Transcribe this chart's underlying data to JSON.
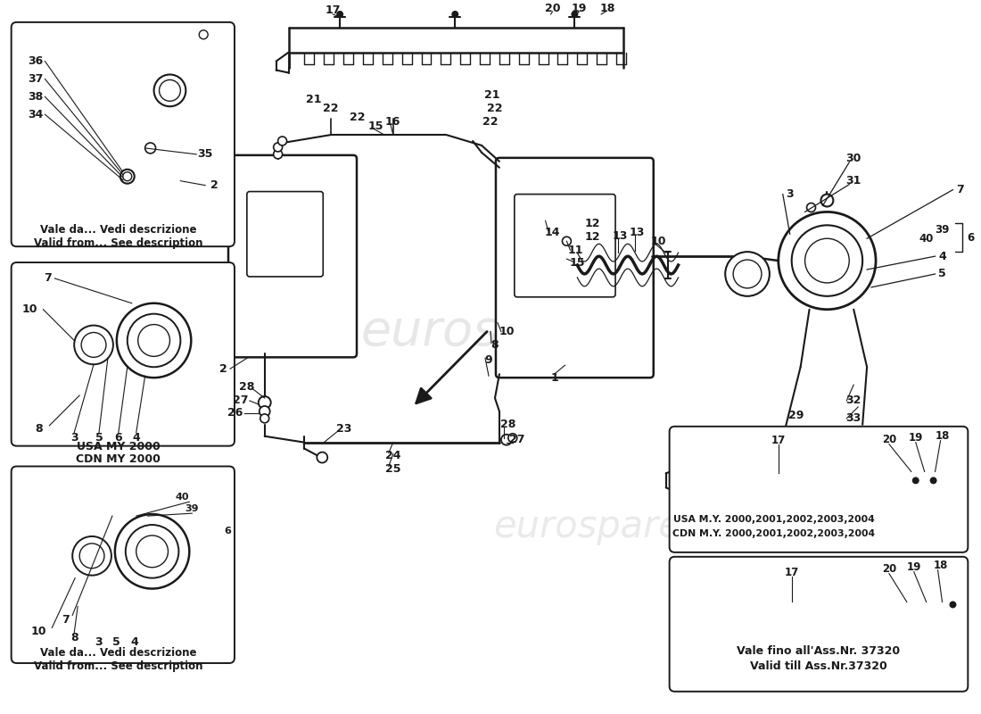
{
  "bg": "#ffffff",
  "lc": "#1a1a1a",
  "fw": 11.0,
  "fh": 8.0,
  "dpi": 100,
  "inset1_cap": [
    "Vale da... Vedi descrizione",
    "Valid from... See description"
  ],
  "inset2_cap": [
    "USA MY 2000",
    "CDN MY 2000"
  ],
  "inset3_cap": [
    "Vale da... Vedi descrizione",
    "Valid from... See description"
  ],
  "inset4_cap": [
    "USA M.Y. 2000,2001,2002,2003,2004",
    "CDN M.Y. 2000,2001,2002,2003,2004"
  ],
  "inset5_cap": [
    "Vale fino all'Ass.Nr. 37320",
    "Valid till Ass.Nr.37320"
  ]
}
